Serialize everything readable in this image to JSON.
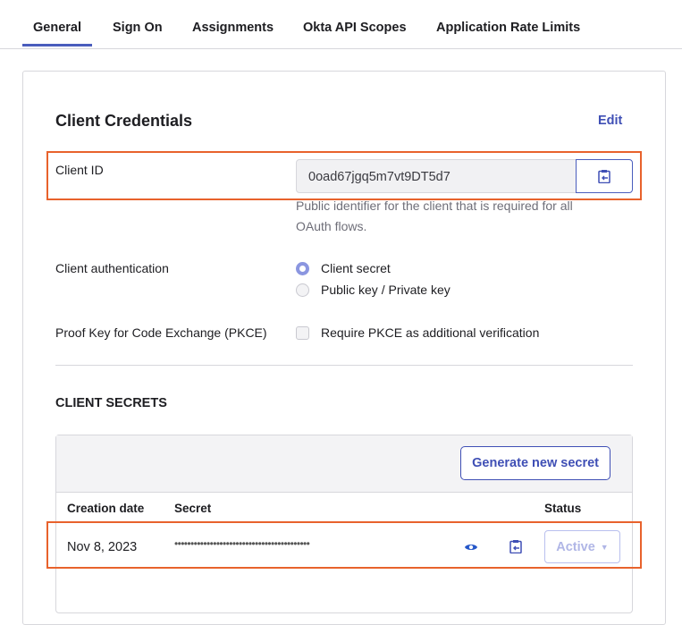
{
  "tabs": [
    {
      "label": "General",
      "active": true
    },
    {
      "label": "Sign On"
    },
    {
      "label": "Assignments"
    },
    {
      "label": "Okta API Scopes"
    },
    {
      "label": "Application Rate Limits"
    }
  ],
  "credentials": {
    "title": "Client Credentials",
    "edit_label": "Edit",
    "client_id_label": "Client ID",
    "client_id_value": "0oad67jgq5m7vt9DT5d7",
    "client_id_help": "Public identifier for the client that is required for all OAuth flows.",
    "auth_label": "Client authentication",
    "auth_options": [
      {
        "label": "Client secret",
        "selected": true
      },
      {
        "label": "Public key / Private key",
        "selected": false
      }
    ],
    "pkce_label": "Proof Key for Code Exchange (PKCE)",
    "pkce_option": "Require PKCE as additional verification",
    "pkce_checked": false
  },
  "secrets": {
    "title": "CLIENT SECRETS",
    "generate_label": "Generate new secret",
    "columns": [
      "Creation date",
      "Secret",
      "Status"
    ],
    "rows": [
      {
        "date": "Nov 8, 2023",
        "secret": "••••••••••••••••••••••••••••••••••••••••••",
        "status": "Active"
      }
    ]
  },
  "colors": {
    "accent": "#3f4fb5",
    "highlight": "#e8622c"
  }
}
